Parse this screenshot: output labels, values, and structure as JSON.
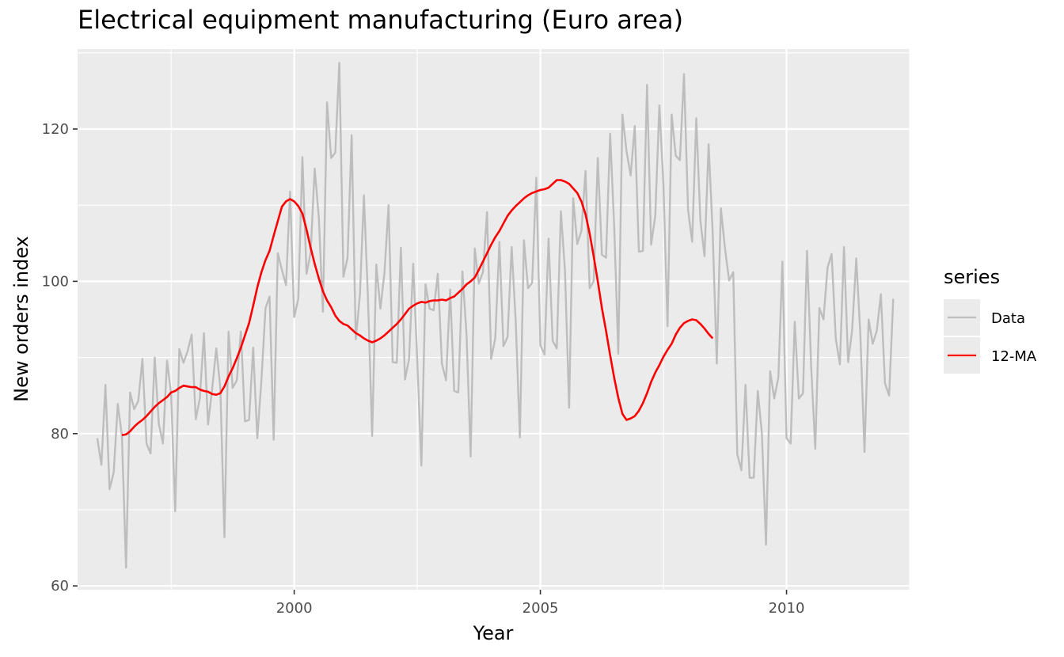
{
  "chart_data": {
    "type": "line",
    "title": "Electrical equipment manufacturing (Euro area)",
    "xlabel": "Year",
    "ylabel": "New orders index",
    "xlim": [
      1995.6,
      2012.5
    ],
    "ylim": [
      59.5,
      130.5
    ],
    "x_ticks": [
      2000,
      2005,
      2010
    ],
    "x_tick_labels": [
      "2000",
      "2005",
      "2010"
    ],
    "y_ticks": [
      60,
      80,
      100,
      120
    ],
    "y_tick_labels": [
      "60",
      "80",
      "100",
      "120"
    ],
    "grid": true,
    "legend": {
      "title": "series",
      "placement": "right"
    },
    "series": [
      {
        "name": "Data",
        "color": "#bdbdbd",
        "x_start": 1996.0,
        "x_step": 0.083333,
        "values": [
          79.4,
          75.9,
          86.4,
          72.7,
          74.9,
          83.9,
          79.7,
          62.4,
          85.4,
          83.2,
          84.3,
          89.8,
          78.7,
          77.4,
          90.0,
          81.3,
          78.7,
          89.6,
          85.1,
          69.8,
          91.1,
          89.3,
          90.8,
          93.0,
          81.9,
          84.6,
          93.2,
          81.2,
          85.9,
          91.2,
          86.0,
          66.4,
          93.4,
          86.0,
          87.0,
          93.4,
          81.6,
          81.8,
          91.3,
          79.4,
          87.0,
          96.5,
          98.0,
          79.2,
          103.7,
          101.5,
          99.5,
          111.8,
          95.3,
          97.7,
          116.3,
          101.0,
          103.8,
          114.8,
          108.4,
          96.0,
          123.5,
          116.2,
          116.9,
          128.7,
          100.6,
          103.1,
          119.2,
          92.4,
          98.2,
          111.3,
          97.5,
          79.7,
          102.2,
          96.4,
          101.1,
          110.0,
          89.4,
          89.3,
          104.4,
          87.1,
          89.8,
          102.3,
          89.5,
          75.8,
          99.6,
          96.4,
          96.2,
          101.0,
          89.2,
          87.0,
          98.9,
          85.6,
          85.4,
          101.3,
          93.0,
          77.0,
          104.3,
          99.7,
          101.2,
          109.1,
          89.8,
          92.5,
          105.2,
          91.5,
          92.7,
          104.5,
          94.6,
          79.5,
          105.4,
          99.1,
          99.8,
          113.6,
          91.6,
          90.4,
          105.6,
          92.2,
          91.2,
          109.2,
          101.3,
          83.4,
          110.9,
          104.9,
          106.6,
          114.5,
          99.1,
          100.0,
          116.2,
          103.5,
          103.1,
          119.4,
          107.0,
          90.5,
          121.9,
          117.1,
          113.9,
          120.4,
          103.9,
          104.0,
          125.8,
          104.8,
          108.6,
          123.1,
          112.5,
          94.1,
          121.9,
          116.5,
          115.9,
          127.2,
          109.4,
          105.2,
          121.4,
          108.0,
          103.3,
          118.0,
          106.5,
          89.2,
          109.6,
          104.3,
          100.1,
          101.2,
          77.3,
          75.2,
          86.4,
          74.2,
          74.2,
          85.6,
          80.0,
          65.4,
          88.2,
          84.6,
          87.4,
          102.6,
          79.4,
          78.7,
          94.7,
          84.6,
          85.3,
          104.0,
          88.9,
          78.0,
          96.5,
          95.0,
          101.8,
          103.6,
          92.5,
          89.1,
          104.5,
          89.4,
          93.6,
          103.0,
          92.9,
          77.6,
          95.0,
          91.8,
          93.5,
          98.3,
          86.6,
          85.0,
          97.7
        ]
      },
      {
        "name": "12-MA",
        "color": "#ff0000",
        "x_start": 1996.5,
        "x_step": 0.083333,
        "values": [
          79.8,
          79.9,
          80.3,
          80.9,
          81.4,
          81.8,
          82.3,
          82.9,
          83.5,
          84.0,
          84.4,
          84.8,
          85.4,
          85.6,
          86.0,
          86.3,
          86.2,
          86.1,
          86.1,
          85.8,
          85.6,
          85.5,
          85.2,
          85.1,
          85.3,
          86.2,
          87.5,
          88.6,
          89.9,
          91.3,
          92.9,
          94.5,
          96.8,
          99.2,
          101.2,
          102.8,
          104.0,
          106.0,
          107.9,
          109.8,
          110.5,
          110.8,
          110.5,
          109.9,
          108.9,
          106.8,
          104.4,
          102.3,
          100.4,
          98.7,
          97.5,
          96.6,
          95.5,
          94.8,
          94.4,
          94.2,
          93.7,
          93.2,
          92.9,
          92.5,
          92.2,
          92.0,
          92.2,
          92.5,
          92.9,
          93.4,
          93.9,
          94.4,
          95.0,
          95.7,
          96.4,
          96.8,
          97.1,
          97.3,
          97.2,
          97.4,
          97.5,
          97.5,
          97.6,
          97.5,
          97.8,
          98.0,
          98.5,
          99.0,
          99.6,
          100.0,
          100.5,
          101.5,
          102.6,
          103.7,
          104.8,
          105.8,
          106.6,
          107.6,
          108.6,
          109.3,
          109.9,
          110.4,
          110.9,
          111.3,
          111.6,
          111.8,
          112.0,
          112.1,
          112.3,
          112.8,
          113.3,
          113.3,
          113.1,
          112.8,
          112.2,
          111.6,
          110.5,
          108.8,
          106.3,
          103.3,
          100.0,
          96.5,
          93.5,
          90.3,
          87.3,
          84.7,
          82.6,
          81.8,
          82.0,
          82.3,
          83.0,
          84.0,
          85.3,
          86.8,
          88.0,
          89.0,
          90.1,
          91.0,
          91.8,
          93.0,
          93.9,
          94.5,
          94.8,
          95.0,
          94.9,
          94.4,
          93.8,
          93.1,
          92.5
        ]
      }
    ]
  }
}
